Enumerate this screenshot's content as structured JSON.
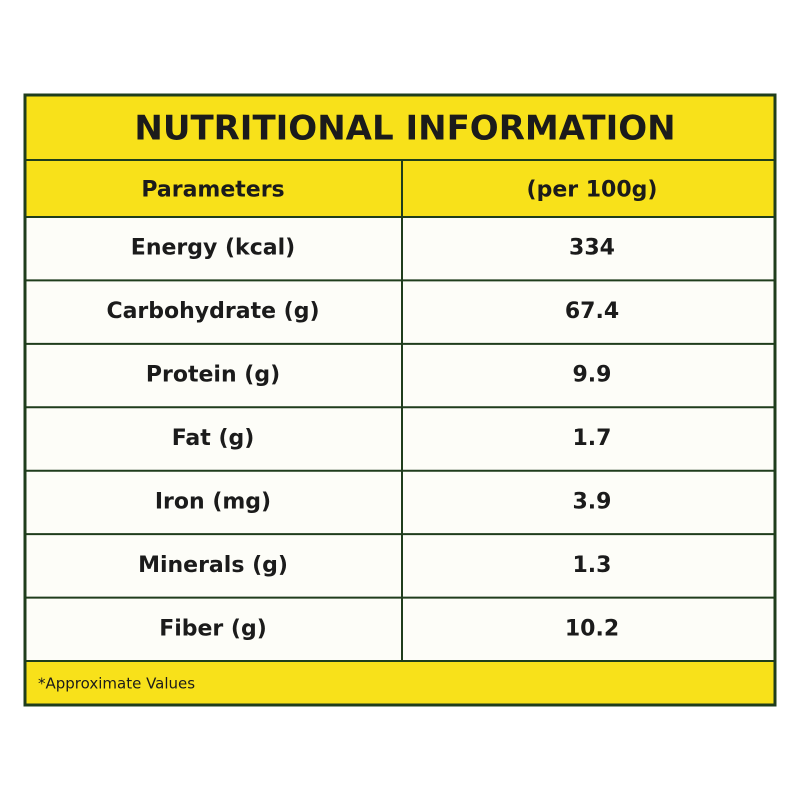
{
  "title": "NUTRITIONAL INFORMATION",
  "table": {
    "header": [
      "Parameters",
      "(per 100g)"
    ],
    "rows": [
      [
        "Energy (kcal)",
        "334"
      ],
      [
        "Carbohydrate (g)",
        "67.4"
      ],
      [
        "Protein (g)",
        "9.9"
      ],
      [
        "Fat (g)",
        "1.7"
      ],
      [
        "Iron (mg)",
        "3.9"
      ],
      [
        "Minerals (g)",
        "1.3"
      ],
      [
        "Fiber (g)",
        "10.2"
      ]
    ]
  },
  "footnote": "*Approximate Values"
}
